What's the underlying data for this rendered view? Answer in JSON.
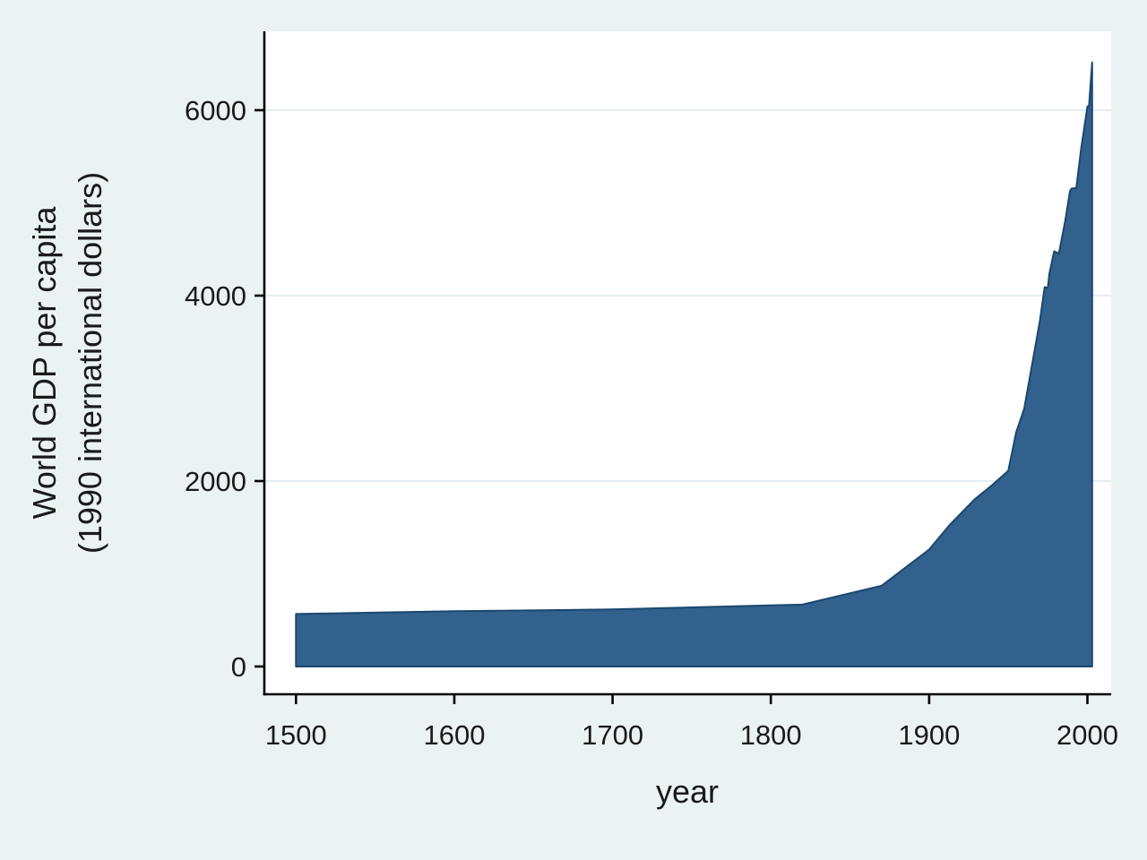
{
  "chart_data": {
    "type": "area",
    "title": "",
    "xlabel": "year",
    "ylabel_line1": "World GDP per capita",
    "ylabel_line2": "(1990 international dollars)",
    "xticks": [
      1500,
      1600,
      1700,
      1800,
      1900,
      2000
    ],
    "yticks": [
      0,
      2000,
      4000,
      6000
    ],
    "xlim": [
      1500,
      2003
    ],
    "ylim": [
      0,
      6516
    ],
    "grid": "horizontal",
    "legend": "none",
    "series": [
      {
        "name": "World GDP per capita (1990 international dollars)",
        "x": [
          1500,
          1600,
          1700,
          1820,
          1870,
          1900,
          1913,
          1929,
          1940,
          1950,
          1955,
          1960,
          1964,
          1970,
          1973,
          1975,
          1976,
          1979,
          1982,
          1986,
          1989,
          1990,
          1993,
          1996,
          2000,
          2001,
          2003
        ],
        "y": [
          566,
          596,
          615,
          667,
          871,
          1261,
          1526,
          1806,
          1958,
          2111,
          2525,
          2777,
          3155,
          3729,
          4091,
          4083,
          4239,
          4478,
          4455,
          4809,
          5130,
          5154,
          5160,
          5577,
          6038,
          6049,
          6516
        ]
      }
    ],
    "colors": {
      "background": "#eaf2f3",
      "plot_background": "#ffffff",
      "gridline": "#dbe8ee",
      "axis": "#000000",
      "text": "#1a1a1a",
      "area_fill": "#33618e",
      "area_stroke": "#1a476f"
    }
  }
}
